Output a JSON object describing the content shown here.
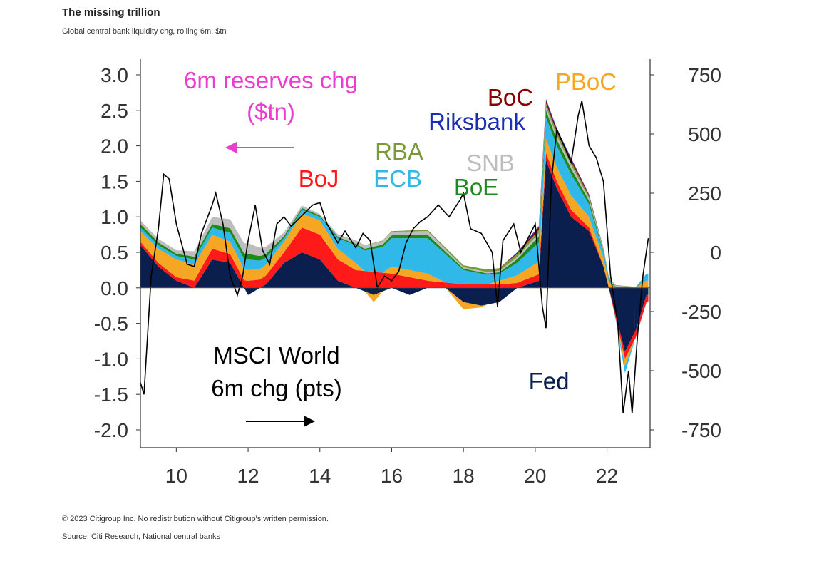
{
  "title": "The missing trillion",
  "subtitle": "Global central bank liquidity chg, rolling 6m, $tn",
  "footer": {
    "copyright": "© 2023 Citigroup Inc. No redistribution without Citigroup's written permission.",
    "source": "Source: Citi Research, National central banks"
  },
  "chart_data": {
    "type": "area",
    "x_range": [
      2009,
      2023.2
    ],
    "xticks": [
      10,
      12,
      14,
      16,
      18,
      20,
      22
    ],
    "ylim_left": [
      -2.0,
      3.0
    ],
    "yticks_left": [
      "3.0",
      "2.5",
      "2.0",
      "1.5",
      "1.0",
      "0.5",
      "0.0",
      "-0.5",
      "-1.0",
      "-1.5",
      "-2.0"
    ],
    "ylim_right": [
      -750,
      750
    ],
    "yticks_right": [
      "750",
      "500",
      "250",
      "0",
      "-250",
      "-500",
      "-750"
    ],
    "annotations": {
      "reserves_label_1": "6m reserves chg",
      "reserves_label_2": "($tn)",
      "msci_label_1": "MSCI World",
      "msci_label_2": "6m chg (pts)"
    },
    "series": [
      {
        "name": "Fed",
        "color": "#0b1f4f",
        "points": [
          [
            2009,
            0.6
          ],
          [
            2009.5,
            0.3
          ],
          [
            2010,
            0.1
          ],
          [
            2010.5,
            0.0
          ],
          [
            2011,
            0.4
          ],
          [
            2011.5,
            0.35
          ],
          [
            2012,
            -0.1
          ],
          [
            2012.5,
            0.05
          ],
          [
            2013,
            0.35
          ],
          [
            2013.5,
            0.5
          ],
          [
            2014,
            0.4
          ],
          [
            2014.5,
            0.1
          ],
          [
            2015,
            0.0
          ],
          [
            2015.5,
            -0.1
          ],
          [
            2016,
            0.0
          ],
          [
            2016.5,
            -0.1
          ],
          [
            2017,
            0.0
          ],
          [
            2017.5,
            0.0
          ],
          [
            2018,
            -0.2
          ],
          [
            2018.5,
            -0.25
          ],
          [
            2019,
            -0.2
          ],
          [
            2019.5,
            0.0
          ],
          [
            2020.1,
            0.1
          ],
          [
            2020.3,
            1.8
          ],
          [
            2020.6,
            1.4
          ],
          [
            2021,
            1.0
          ],
          [
            2021.5,
            0.8
          ],
          [
            2021.9,
            0.3
          ],
          [
            2022.2,
            -0.3
          ],
          [
            2022.5,
            -0.9
          ],
          [
            2022.8,
            -0.6
          ],
          [
            2023.1,
            -0.1
          ]
        ]
      },
      {
        "name": "BoJ",
        "color": "#ff1a1a",
        "points": [
          [
            2009,
            0.05
          ],
          [
            2010,
            0.05
          ],
          [
            2011,
            0.15
          ],
          [
            2012,
            0.1
          ],
          [
            2013,
            0.15
          ],
          [
            2013.5,
            0.35
          ],
          [
            2014,
            0.35
          ],
          [
            2014.5,
            0.3
          ],
          [
            2015,
            0.25
          ],
          [
            2016,
            0.2
          ],
          [
            2016.5,
            0.15
          ],
          [
            2017,
            0.1
          ],
          [
            2018,
            0.05
          ],
          [
            2019,
            0.05
          ],
          [
            2020.3,
            0.1
          ],
          [
            2021,
            0.1
          ],
          [
            2022,
            0.0
          ],
          [
            2022.5,
            -0.1
          ],
          [
            2023.1,
            -0.1
          ]
        ]
      },
      {
        "name": "PBoC",
        "color": "#f5a623",
        "points": [
          [
            2009,
            0.15
          ],
          [
            2010,
            0.25
          ],
          [
            2011,
            0.2
          ],
          [
            2012,
            0.15
          ],
          [
            2013,
            0.15
          ],
          [
            2013.5,
            0.2
          ],
          [
            2014,
            0.2
          ],
          [
            2014.5,
            0.15
          ],
          [
            2015,
            0.1
          ],
          [
            2015.5,
            -0.1
          ],
          [
            2016,
            0.1
          ],
          [
            2017,
            0.1
          ],
          [
            2018,
            -0.1
          ],
          [
            2019,
            0.05
          ],
          [
            2020.3,
            0.2
          ],
          [
            2021,
            0.2
          ],
          [
            2022,
            0.1
          ],
          [
            2022.5,
            -0.1
          ],
          [
            2023.1,
            0.1
          ]
        ]
      },
      {
        "name": "ECB",
        "color": "#2fb8e8",
        "points": [
          [
            2009,
            0.05
          ],
          [
            2010,
            0.05
          ],
          [
            2011,
            0.1
          ],
          [
            2012,
            0.15
          ],
          [
            2013,
            0.05
          ],
          [
            2014,
            0.05
          ],
          [
            2015,
            0.25
          ],
          [
            2016,
            0.4
          ],
          [
            2016.5,
            0.45
          ],
          [
            2017,
            0.5
          ],
          [
            2017.5,
            0.4
          ],
          [
            2018,
            0.2
          ],
          [
            2019,
            0.1
          ],
          [
            2020.3,
            0.3
          ],
          [
            2021,
            0.3
          ],
          [
            2022,
            0.05
          ],
          [
            2022.5,
            -0.1
          ],
          [
            2023.1,
            0.1
          ]
        ]
      },
      {
        "name": "BoE",
        "color": "#1e8a1e",
        "points": [
          [
            2009,
            0.05
          ],
          [
            2010,
            0.03
          ],
          [
            2011,
            0.05
          ],
          [
            2012,
            0.08
          ],
          [
            2013,
            0.03
          ],
          [
            2014,
            0.02
          ],
          [
            2015,
            0.02
          ],
          [
            2016,
            0.04
          ],
          [
            2017,
            0.05
          ],
          [
            2018,
            0.02
          ],
          [
            2019,
            0.02
          ],
          [
            2020.3,
            0.1
          ],
          [
            2021,
            0.08
          ],
          [
            2022,
            0.02
          ],
          [
            2023.1,
            0.0
          ]
        ]
      },
      {
        "name": "SNB",
        "color": "#bdbdbd",
        "points": [
          [
            2009,
            0.05
          ],
          [
            2010,
            0.05
          ],
          [
            2011,
            0.1
          ],
          [
            2012,
            0.15
          ],
          [
            2013,
            0.05
          ],
          [
            2014,
            0.02
          ],
          [
            2015,
            0.05
          ],
          [
            2016,
            0.05
          ],
          [
            2017,
            0.05
          ],
          [
            2018,
            0.02
          ],
          [
            2019,
            0.02
          ],
          [
            2020.3,
            0.05
          ],
          [
            2021,
            0.05
          ],
          [
            2022,
            0.02
          ],
          [
            2023.1,
            0.0
          ]
        ]
      },
      {
        "name": "RBA",
        "color": "#7a9a3a",
        "points": [
          [
            2009,
            0.0
          ],
          [
            2015,
            0.0
          ],
          [
            2020.3,
            0.05
          ],
          [
            2021,
            0.05
          ],
          [
            2022,
            0.01
          ],
          [
            2023.1,
            0.0
          ]
        ]
      },
      {
        "name": "BoC",
        "color": "#8b0000",
        "points": [
          [
            2009,
            0.0
          ],
          [
            2019,
            0.0
          ],
          [
            2020.3,
            0.04
          ],
          [
            2021,
            0.03
          ],
          [
            2022,
            0.0
          ],
          [
            2023.1,
            0.0
          ]
        ]
      },
      {
        "name": "Riksbank",
        "color": "#1a2fb3",
        "points": [
          [
            2009,
            0.0
          ],
          [
            2019,
            0.0
          ],
          [
            2020.3,
            0.02
          ],
          [
            2021,
            0.02
          ],
          [
            2022,
            0.0
          ],
          [
            2023.1,
            0.0
          ]
        ]
      }
    ],
    "msci": {
      "name": "MSCI World 6m chg (pts)",
      "color": "#000000",
      "points": [
        [
          2009.0,
          -550
        ],
        [
          2009.1,
          -600
        ],
        [
          2009.3,
          -100
        ],
        [
          2009.5,
          100
        ],
        [
          2009.65,
          330
        ],
        [
          2009.8,
          310
        ],
        [
          2010.0,
          120
        ],
        [
          2010.3,
          -50
        ],
        [
          2010.5,
          -60
        ],
        [
          2010.7,
          80
        ],
        [
          2011.0,
          200
        ],
        [
          2011.1,
          250
        ],
        [
          2011.3,
          120
        ],
        [
          2011.5,
          -100
        ],
        [
          2011.7,
          -180
        ],
        [
          2011.85,
          -100
        ],
        [
          2012.0,
          50
        ],
        [
          2012.2,
          200
        ],
        [
          2012.4,
          10
        ],
        [
          2012.6,
          -50
        ],
        [
          2012.8,
          120
        ],
        [
          2013.0,
          150
        ],
        [
          2013.2,
          110
        ],
        [
          2013.4,
          140
        ],
        [
          2013.6,
          170
        ],
        [
          2013.8,
          200
        ],
        [
          2014.0,
          210
        ],
        [
          2014.2,
          120
        ],
        [
          2014.5,
          40
        ],
        [
          2014.7,
          90
        ],
        [
          2015.0,
          20
        ],
        [
          2015.2,
          80
        ],
        [
          2015.4,
          50
        ],
        [
          2015.6,
          -150
        ],
        [
          2015.8,
          -100
        ],
        [
          2016.0,
          -120
        ],
        [
          2016.2,
          -80
        ],
        [
          2016.4,
          40
        ],
        [
          2016.6,
          100
        ],
        [
          2016.8,
          130
        ],
        [
          2017.0,
          150
        ],
        [
          2017.3,
          200
        ],
        [
          2017.6,
          150
        ],
        [
          2017.9,
          220
        ],
        [
          2018.0,
          250
        ],
        [
          2018.2,
          100
        ],
        [
          2018.5,
          80
        ],
        [
          2018.8,
          0
        ],
        [
          2018.95,
          -230
        ],
        [
          2019.1,
          50
        ],
        [
          2019.4,
          120
        ],
        [
          2019.6,
          0
        ],
        [
          2019.8,
          60
        ],
        [
          2020.0,
          120
        ],
        [
          2020.2,
          -230
        ],
        [
          2020.3,
          -320
        ],
        [
          2020.45,
          300
        ],
        [
          2020.6,
          520
        ],
        [
          2020.8,
          450
        ],
        [
          2021.0,
          380
        ],
        [
          2021.2,
          580
        ],
        [
          2021.3,
          640
        ],
        [
          2021.5,
          450
        ],
        [
          2021.7,
          400
        ],
        [
          2021.9,
          300
        ],
        [
          2022.1,
          -100
        ],
        [
          2022.3,
          -300
        ],
        [
          2022.45,
          -680
        ],
        [
          2022.6,
          -500
        ],
        [
          2022.7,
          -680
        ],
        [
          2022.85,
          -350
        ],
        [
          2023.0,
          -100
        ],
        [
          2023.15,
          60
        ]
      ]
    },
    "legend_labels": [
      {
        "text": "BoJ",
        "color": "#ff1a1a"
      },
      {
        "text": "RBA",
        "color": "#7a9a3a"
      },
      {
        "text": "ECB",
        "color": "#2fb8e8"
      },
      {
        "text": "SNB",
        "color": "#bdbdbd"
      },
      {
        "text": "BoE",
        "color": "#1e8a1e"
      },
      {
        "text": "BoC",
        "color": "#8b0000"
      },
      {
        "text": "Riksbank",
        "color": "#1a2fb3"
      },
      {
        "text": "PBoC",
        "color": "#f5a623"
      },
      {
        "text": "Fed",
        "color": "#0b1f4f"
      }
    ],
    "reserves_label_color": "#e83fd1",
    "msci_label_color": "#000000"
  }
}
